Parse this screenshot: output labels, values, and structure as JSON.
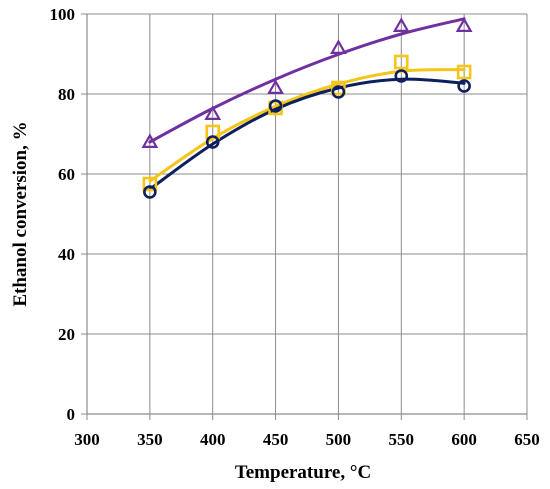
{
  "chart_data": {
    "type": "scatter",
    "title": "",
    "xlabel": "Temperature, °C",
    "ylabel": "Ethanol conversion, %",
    "xlim": [
      300,
      650
    ],
    "ylim": [
      0,
      100
    ],
    "xticks": [
      300,
      350,
      400,
      450,
      500,
      550,
      600,
      650
    ],
    "yticks": [
      0,
      20,
      40,
      60,
      80,
      100
    ],
    "grid": true,
    "legend": "none",
    "series": [
      {
        "marker": "triangle",
        "color": "#7030a0",
        "x": [
          350,
          400,
          450,
          500,
          550,
          600
        ],
        "y": [
          68,
          75,
          81.5,
          91.5,
          97,
          97
        ],
        "trend": [
          [
            350,
            68
          ],
          [
            400,
            76.4
          ],
          [
            450,
            83.7
          ],
          [
            500,
            89.9
          ],
          [
            550,
            95
          ],
          [
            600,
            98.8
          ]
        ]
      },
      {
        "marker": "square",
        "color": "#f5c518",
        "x": [
          350,
          400,
          450,
          500,
          550,
          600
        ],
        "y": [
          57.5,
          70.5,
          76.5,
          81.5,
          88,
          85.5
        ],
        "trend": [
          [
            350,
            58.2
          ],
          [
            400,
            68.9
          ],
          [
            450,
            76.9
          ],
          [
            500,
            82.5
          ],
          [
            550,
            85.7
          ],
          [
            600,
            86.1
          ]
        ]
      },
      {
        "marker": "circle",
        "color": "#0d1f5c",
        "x": [
          350,
          400,
          450,
          500,
          550,
          600
        ],
        "y": [
          55.5,
          68,
          77,
          80.5,
          84.5,
          82
        ],
        "trend": [
          [
            350,
            56.2
          ],
          [
            400,
            67.5
          ],
          [
            450,
            76.2
          ],
          [
            500,
            81.5
          ],
          [
            550,
            83.7
          ],
          [
            600,
            82.7
          ]
        ]
      }
    ]
  }
}
